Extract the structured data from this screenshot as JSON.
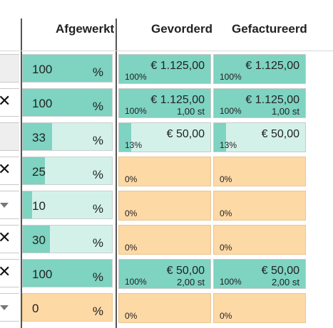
{
  "header": {
    "col_afgewerkt": "Afgewerkt",
    "col_gevorderd": "Gevorderd",
    "col_gefactureerd": "Gefactureerd"
  },
  "colors": {
    "fill": "#7ed3c1",
    "track": "#d3f1e9",
    "empty": "#fdd9a6"
  },
  "rows": [
    {
      "icon": "none",
      "afgewerkt": {
        "value": "100",
        "symbol": "%",
        "fraction": 1.0
      },
      "gevorderd": {
        "amount": "€ 1.125,00",
        "qty": "",
        "percent": "100%",
        "fraction": 1.0
      },
      "gefactureerd": {
        "amount": "€ 1.125,00",
        "qty": "",
        "percent": "100%",
        "fraction": 1.0
      }
    },
    {
      "icon": "close-icon",
      "afgewerkt": {
        "value": "100",
        "symbol": "%",
        "fraction": 1.0
      },
      "gevorderd": {
        "amount": "€ 1.125,00",
        "qty": "1,00 st",
        "percent": "100%",
        "fraction": 1.0
      },
      "gefactureerd": {
        "amount": "€ 1.125,00",
        "qty": "1,00 st",
        "percent": "100%",
        "fraction": 1.0
      }
    },
    {
      "icon": "none",
      "afgewerkt": {
        "value": "33",
        "symbol": "%",
        "fraction": 0.33
      },
      "gevorderd": {
        "amount": "€ 50,00",
        "qty": "",
        "percent": "13%",
        "fraction": 0.13
      },
      "gefactureerd": {
        "amount": "€ 50,00",
        "qty": "",
        "percent": "13%",
        "fraction": 0.13
      }
    },
    {
      "icon": "close-icon",
      "afgewerkt": {
        "value": "25",
        "symbol": "%",
        "fraction": 0.25
      },
      "gevorderd": {
        "amount": "",
        "qty": "",
        "percent": "0%",
        "fraction": 0
      },
      "gefactureerd": {
        "amount": "",
        "qty": "",
        "percent": "0%",
        "fraction": 0
      }
    },
    {
      "icon": "caret-down-icon",
      "afgewerkt": {
        "value": "10",
        "symbol": "%",
        "fraction": 0.1
      },
      "gevorderd": {
        "amount": "",
        "qty": "",
        "percent": "0%",
        "fraction": 0
      },
      "gefactureerd": {
        "amount": "",
        "qty": "",
        "percent": "0%",
        "fraction": 0
      }
    },
    {
      "icon": "close-icon",
      "afgewerkt": {
        "value": "30",
        "symbol": "%",
        "fraction": 0.3
      },
      "gevorderd": {
        "amount": "",
        "qty": "",
        "percent": "0%",
        "fraction": 0
      },
      "gefactureerd": {
        "amount": "",
        "qty": "",
        "percent": "0%",
        "fraction": 0
      }
    },
    {
      "icon": "close-icon",
      "afgewerkt": {
        "value": "100",
        "symbol": "%",
        "fraction": 1.0
      },
      "gevorderd": {
        "amount": "€ 50,00",
        "qty": "2,00 st",
        "percent": "100%",
        "fraction": 1.0
      },
      "gefactureerd": {
        "amount": "€ 50,00",
        "qty": "2,00 st",
        "percent": "100%",
        "fraction": 1.0
      }
    },
    {
      "icon": "caret-down-icon",
      "afgewerkt": {
        "value": "0",
        "symbol": "%",
        "fraction": 0
      },
      "gevorderd": {
        "amount": "",
        "qty": "",
        "percent": "0%",
        "fraction": 0
      },
      "gefactureerd": {
        "amount": "",
        "qty": "",
        "percent": "0%",
        "fraction": 0
      }
    }
  ]
}
